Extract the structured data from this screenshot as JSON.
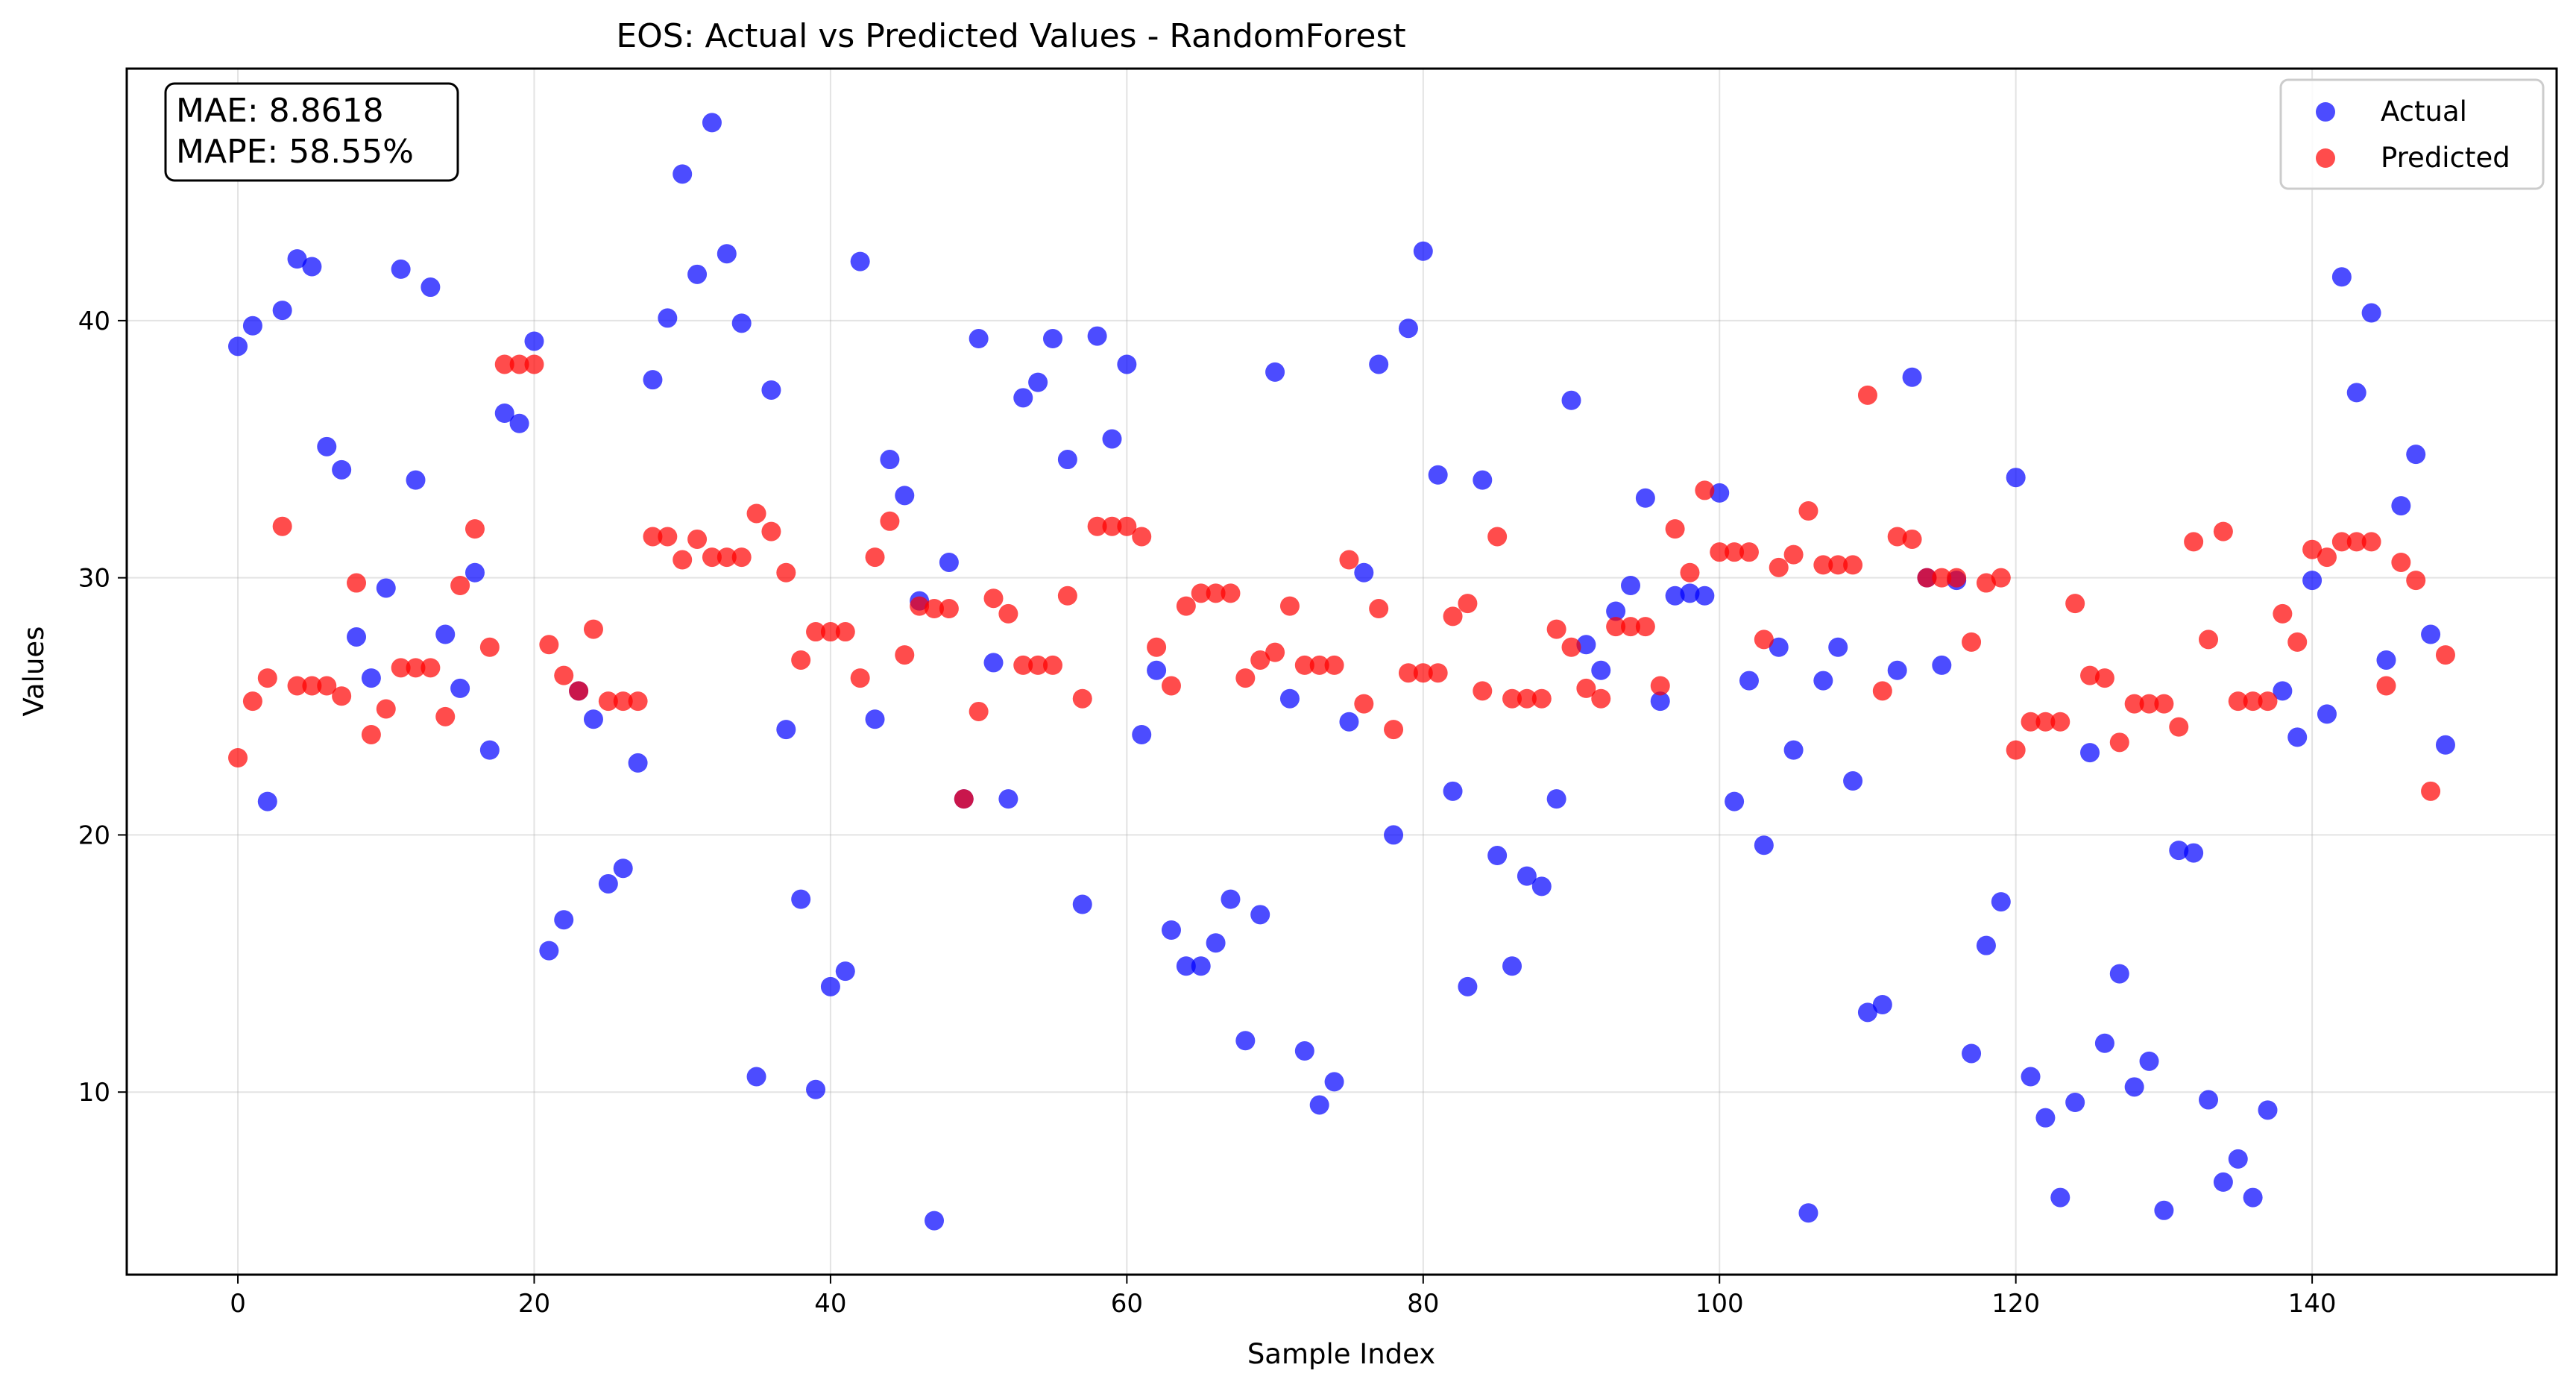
{
  "chart_data": {
    "type": "scatter",
    "title": "EOS: Actual vs Predicted Values - RandomForest",
    "xlabel": "Sample Index",
    "ylabel": "Values",
    "xlim": [
      -7.5,
      156.5
    ],
    "ylim": [
      2.9,
      49.8
    ],
    "x_ticks": [
      0,
      20,
      40,
      60,
      80,
      100,
      120,
      140
    ],
    "y_ticks": [
      10,
      20,
      30,
      40
    ],
    "grid": true,
    "legend_position": "top-right",
    "metrics": [
      "MAE: 8.8618",
      "MAPE: 58.55%"
    ],
    "series": [
      {
        "name": "Actual",
        "color": "#0000ff",
        "values": [
          39.0,
          39.8,
          21.3,
          40.4,
          42.4,
          42.1,
          35.1,
          34.2,
          27.7,
          26.1,
          29.6,
          42.0,
          33.8,
          41.3,
          27.8,
          25.7,
          30.2,
          23.3,
          36.4,
          36.0,
          39.2,
          15.5,
          16.7,
          25.6,
          24.5,
          18.1,
          18.7,
          22.8,
          37.7,
          40.1,
          45.7,
          41.8,
          47.7,
          42.6,
          39.9,
          10.6,
          37.3,
          24.1,
          17.5,
          10.1,
          14.1,
          14.7,
          42.3,
          24.5,
          34.6,
          33.2,
          29.1,
          5.0,
          30.6,
          21.4,
          39.3,
          26.7,
          21.4,
          37.0,
          37.6,
          39.3,
          34.6,
          17.3,
          39.4,
          35.4,
          38.3,
          23.9,
          26.4,
          16.3,
          14.9,
          14.9,
          15.8,
          17.5,
          12.0,
          16.9,
          38.0,
          25.3,
          11.6,
          9.5,
          10.4,
          24.4,
          30.2,
          38.3,
          20.0,
          39.7,
          42.7,
          34.0,
          21.7,
          14.1,
          33.8,
          19.2,
          14.9,
          18.4,
          18.0,
          21.4,
          36.9,
          27.4,
          26.4,
          28.7,
          29.7,
          33.1,
          25.2,
          29.3,
          29.4,
          29.3,
          33.3,
          21.3,
          26.0,
          19.6,
          27.3,
          23.3,
          5.3,
          26.0,
          27.3,
          22.1,
          13.1,
          13.4,
          26.4,
          37.8,
          30.0,
          26.6,
          29.9,
          11.5,
          15.7,
          17.4,
          33.9,
          10.6,
          9.0,
          5.9,
          9.6,
          23.2,
          11.9,
          14.6,
          10.2,
          11.2,
          5.4,
          19.4,
          19.3,
          9.7,
          6.5,
          7.4,
          5.9,
          9.3,
          25.6,
          23.8,
          29.9,
          24.7,
          41.7,
          37.2,
          40.3,
          26.8,
          32.8,
          34.8,
          27.8,
          23.5
        ]
      },
      {
        "name": "Predicted",
        "color": "#ff0000",
        "values": [
          23.0,
          25.2,
          26.1,
          32.0,
          25.8,
          25.8,
          25.8,
          25.4,
          29.8,
          23.9,
          24.9,
          26.5,
          26.5,
          26.5,
          24.6,
          29.7,
          31.9,
          27.3,
          38.3,
          38.3,
          38.3,
          27.4,
          26.2,
          25.6,
          28.0,
          25.2,
          25.2,
          25.2,
          31.6,
          31.6,
          30.7,
          31.5,
          30.8,
          30.8,
          30.8,
          32.5,
          31.8,
          30.2,
          26.8,
          27.9,
          27.9,
          27.9,
          26.1,
          30.8,
          32.2,
          27.0,
          28.9,
          28.8,
          28.8,
          21.4,
          24.8,
          29.2,
          28.6,
          26.6,
          26.6,
          26.6,
          29.3,
          25.3,
          32.0,
          32.0,
          32.0,
          31.6,
          27.3,
          25.8,
          28.9,
          29.4,
          29.4,
          29.4,
          26.1,
          26.8,
          27.1,
          28.9,
          26.6,
          26.6,
          26.6,
          30.7,
          25.1,
          28.8,
          24.1,
          26.3,
          26.3,
          26.3,
          28.5,
          29.0,
          25.6,
          31.6,
          25.3,
          25.3,
          25.3,
          28.0,
          27.3,
          25.7,
          25.3,
          28.1,
          28.1,
          28.1,
          25.8,
          31.9,
          30.2,
          33.4,
          31.0,
          31.0,
          31.0,
          27.6,
          30.4,
          30.9,
          32.6,
          30.5,
          30.5,
          30.5,
          37.1,
          25.6,
          31.6,
          31.5,
          30.0,
          30.0,
          30.0,
          27.5,
          29.8,
          30.0,
          23.3,
          24.4,
          24.4,
          24.4,
          29.0,
          26.2,
          26.1,
          23.6,
          25.1,
          25.1,
          25.1,
          24.2,
          31.4,
          27.6,
          31.8,
          25.2,
          25.2,
          25.2,
          28.6,
          27.5,
          31.1,
          30.8,
          31.4,
          31.4,
          31.4,
          25.8,
          30.6,
          29.9,
          21.7,
          27.0
        ]
      }
    ]
  }
}
